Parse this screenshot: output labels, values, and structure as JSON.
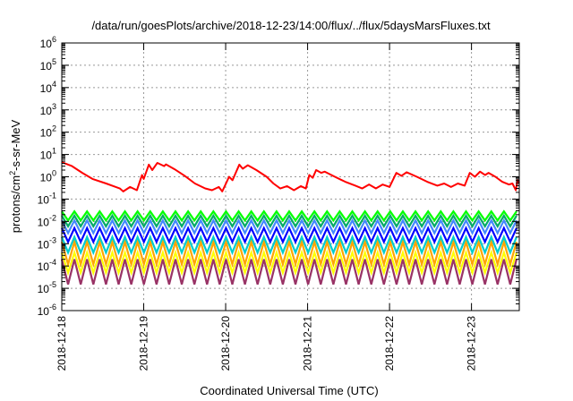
{
  "chart_data": {
    "type": "line",
    "title": "/data/run/goesPlots/archive/2018-12-23/14:00/flux/../flux/5daysMarsFluxes.txt",
    "xlabel": "Coordinated Universal Time (UTC)",
    "ylabel_base": "protons/cm",
    "ylabel_sup": "2",
    "ylabel_rest": "-s-sr-MeV",
    "yscale": "log",
    "ylim": [
      1e-06,
      1000000.0
    ],
    "ytick_exponents": [
      -6,
      -5,
      -4,
      -3,
      -2,
      -1,
      0,
      1,
      2,
      3,
      4,
      5,
      6
    ],
    "xlim": [
      "2018-12-18T00:00",
      "2018-12-23T14:00"
    ],
    "xticks": [
      "2018-12-18",
      "2018-12-19",
      "2018-12-20",
      "2018-12-21",
      "2018-12-22",
      "2018-12-23"
    ],
    "grid": true,
    "legend": "none",
    "series": [
      {
        "color": "#ff0000",
        "sawtooth": false,
        "points": [
          [
            "2018-12-18T00:00",
            4.5
          ],
          [
            "2018-12-18T03:00",
            3.0
          ],
          [
            "2018-12-18T06:00",
            1.5
          ],
          [
            "2018-12-18T09:00",
            0.8
          ],
          [
            "2018-12-18T13:00",
            0.5
          ],
          [
            "2018-12-18T17:00",
            0.3
          ],
          [
            "2018-12-18T18:00",
            0.22
          ],
          [
            "2018-12-18T20:00",
            0.35
          ],
          [
            "2018-12-18T22:00",
            0.25
          ],
          [
            "2018-12-18T23:30",
            1.2
          ],
          [
            "2018-12-19T00:00",
            0.8
          ],
          [
            "2018-12-19T01:30",
            3.5
          ],
          [
            "2018-12-19T02:30",
            2.0
          ],
          [
            "2018-12-19T04:00",
            4.2
          ],
          [
            "2018-12-19T06:00",
            3.0
          ],
          [
            "2018-12-19T06:30",
            3.6
          ],
          [
            "2018-12-19T09:00",
            2.2
          ],
          [
            "2018-12-19T12:00",
            1.1
          ],
          [
            "2018-12-19T15:00",
            0.5
          ],
          [
            "2018-12-19T18:00",
            0.3
          ],
          [
            "2018-12-19T20:00",
            0.25
          ],
          [
            "2018-12-19T22:00",
            0.35
          ],
          [
            "2018-12-19T23:00",
            0.22
          ],
          [
            "2018-12-20T01:00",
            1.0
          ],
          [
            "2018-12-20T02:00",
            0.7
          ],
          [
            "2018-12-20T04:00",
            3.5
          ],
          [
            "2018-12-20T05:00",
            2.3
          ],
          [
            "2018-12-20T06:30",
            3.3
          ],
          [
            "2018-12-20T09:00",
            2.0
          ],
          [
            "2018-12-20T12:00",
            1.0
          ],
          [
            "2018-12-20T14:00",
            0.5
          ],
          [
            "2018-12-20T16:00",
            0.3
          ],
          [
            "2018-12-20T18:00",
            0.38
          ],
          [
            "2018-12-20T20:00",
            0.25
          ],
          [
            "2018-12-20T22:00",
            0.38
          ],
          [
            "2018-12-20T23:30",
            0.3
          ],
          [
            "2018-12-21T00:30",
            1.2
          ],
          [
            "2018-12-21T01:30",
            0.9
          ],
          [
            "2018-12-21T02:30",
            2.0
          ],
          [
            "2018-12-21T04:00",
            1.5
          ],
          [
            "2018-12-21T05:00",
            1.7
          ],
          [
            "2018-12-21T08:00",
            1.0
          ],
          [
            "2018-12-21T11:00",
            0.6
          ],
          [
            "2018-12-21T14:00",
            0.4
          ],
          [
            "2018-12-21T16:00",
            0.3
          ],
          [
            "2018-12-21T18:00",
            0.45
          ],
          [
            "2018-12-21T20:00",
            0.3
          ],
          [
            "2018-12-21T22:00",
            0.45
          ],
          [
            "2018-12-22T00:00",
            0.35
          ],
          [
            "2018-12-22T02:00",
            1.5
          ],
          [
            "2018-12-22T03:30",
            1.1
          ],
          [
            "2018-12-22T05:00",
            1.6
          ],
          [
            "2018-12-22T08:00",
            1.0
          ],
          [
            "2018-12-22T11:00",
            0.6
          ],
          [
            "2018-12-22T14:00",
            0.4
          ],
          [
            "2018-12-22T16:00",
            0.5
          ],
          [
            "2018-12-22T18:00",
            0.35
          ],
          [
            "2018-12-22T20:00",
            0.5
          ],
          [
            "2018-12-22T22:00",
            0.4
          ],
          [
            "2018-12-22T23:30",
            1.5
          ],
          [
            "2018-12-23T01:00",
            1.0
          ],
          [
            "2018-12-23T02:30",
            1.7
          ],
          [
            "2018-12-23T04:00",
            1.2
          ],
          [
            "2018-12-23T05:00",
            1.5
          ],
          [
            "2018-12-23T07:00",
            1.0
          ],
          [
            "2018-12-23T09:00",
            0.6
          ],
          [
            "2018-12-23T11:00",
            0.45
          ],
          [
            "2018-12-23T12:00",
            0.5
          ],
          [
            "2018-12-23T13:00",
            0.25
          ],
          [
            "2018-12-23T13:30",
            0.7
          ],
          [
            "2018-12-23T14:00",
            0.55
          ]
        ]
      },
      {
        "color": "#00ff00",
        "sawtooth": true,
        "period_hours": 3.7,
        "high": 0.028,
        "low": 0.011
      },
      {
        "color": "#00aa66",
        "sawtooth": true,
        "period_hours": 3.7,
        "high": 0.018,
        "low": 0.006
      },
      {
        "color": "#4488ff",
        "sawtooth": true,
        "period_hours": 3.7,
        "high": 0.011,
        "low": 0.003
      },
      {
        "color": "#0000ff",
        "sawtooth": true,
        "period_hours": 3.7,
        "high": 0.005,
        "low": 0.0012
      },
      {
        "color": "#00cccc",
        "sawtooth": true,
        "period_hours": 3.7,
        "high": 0.002,
        "low": 0.0004
      },
      {
        "color": "#ffa500",
        "sawtooth": true,
        "period_hours": 3.7,
        "high": 0.0012,
        "low": 0.00012
      },
      {
        "color": "#ffff00",
        "sawtooth": true,
        "period_hours": 3.7,
        "high": 0.0004,
        "low": 5e-05
      },
      {
        "color": "#993366",
        "sawtooth": true,
        "period_hours": 3.7,
        "high": 0.0002,
        "low": 1.5e-05
      }
    ]
  }
}
